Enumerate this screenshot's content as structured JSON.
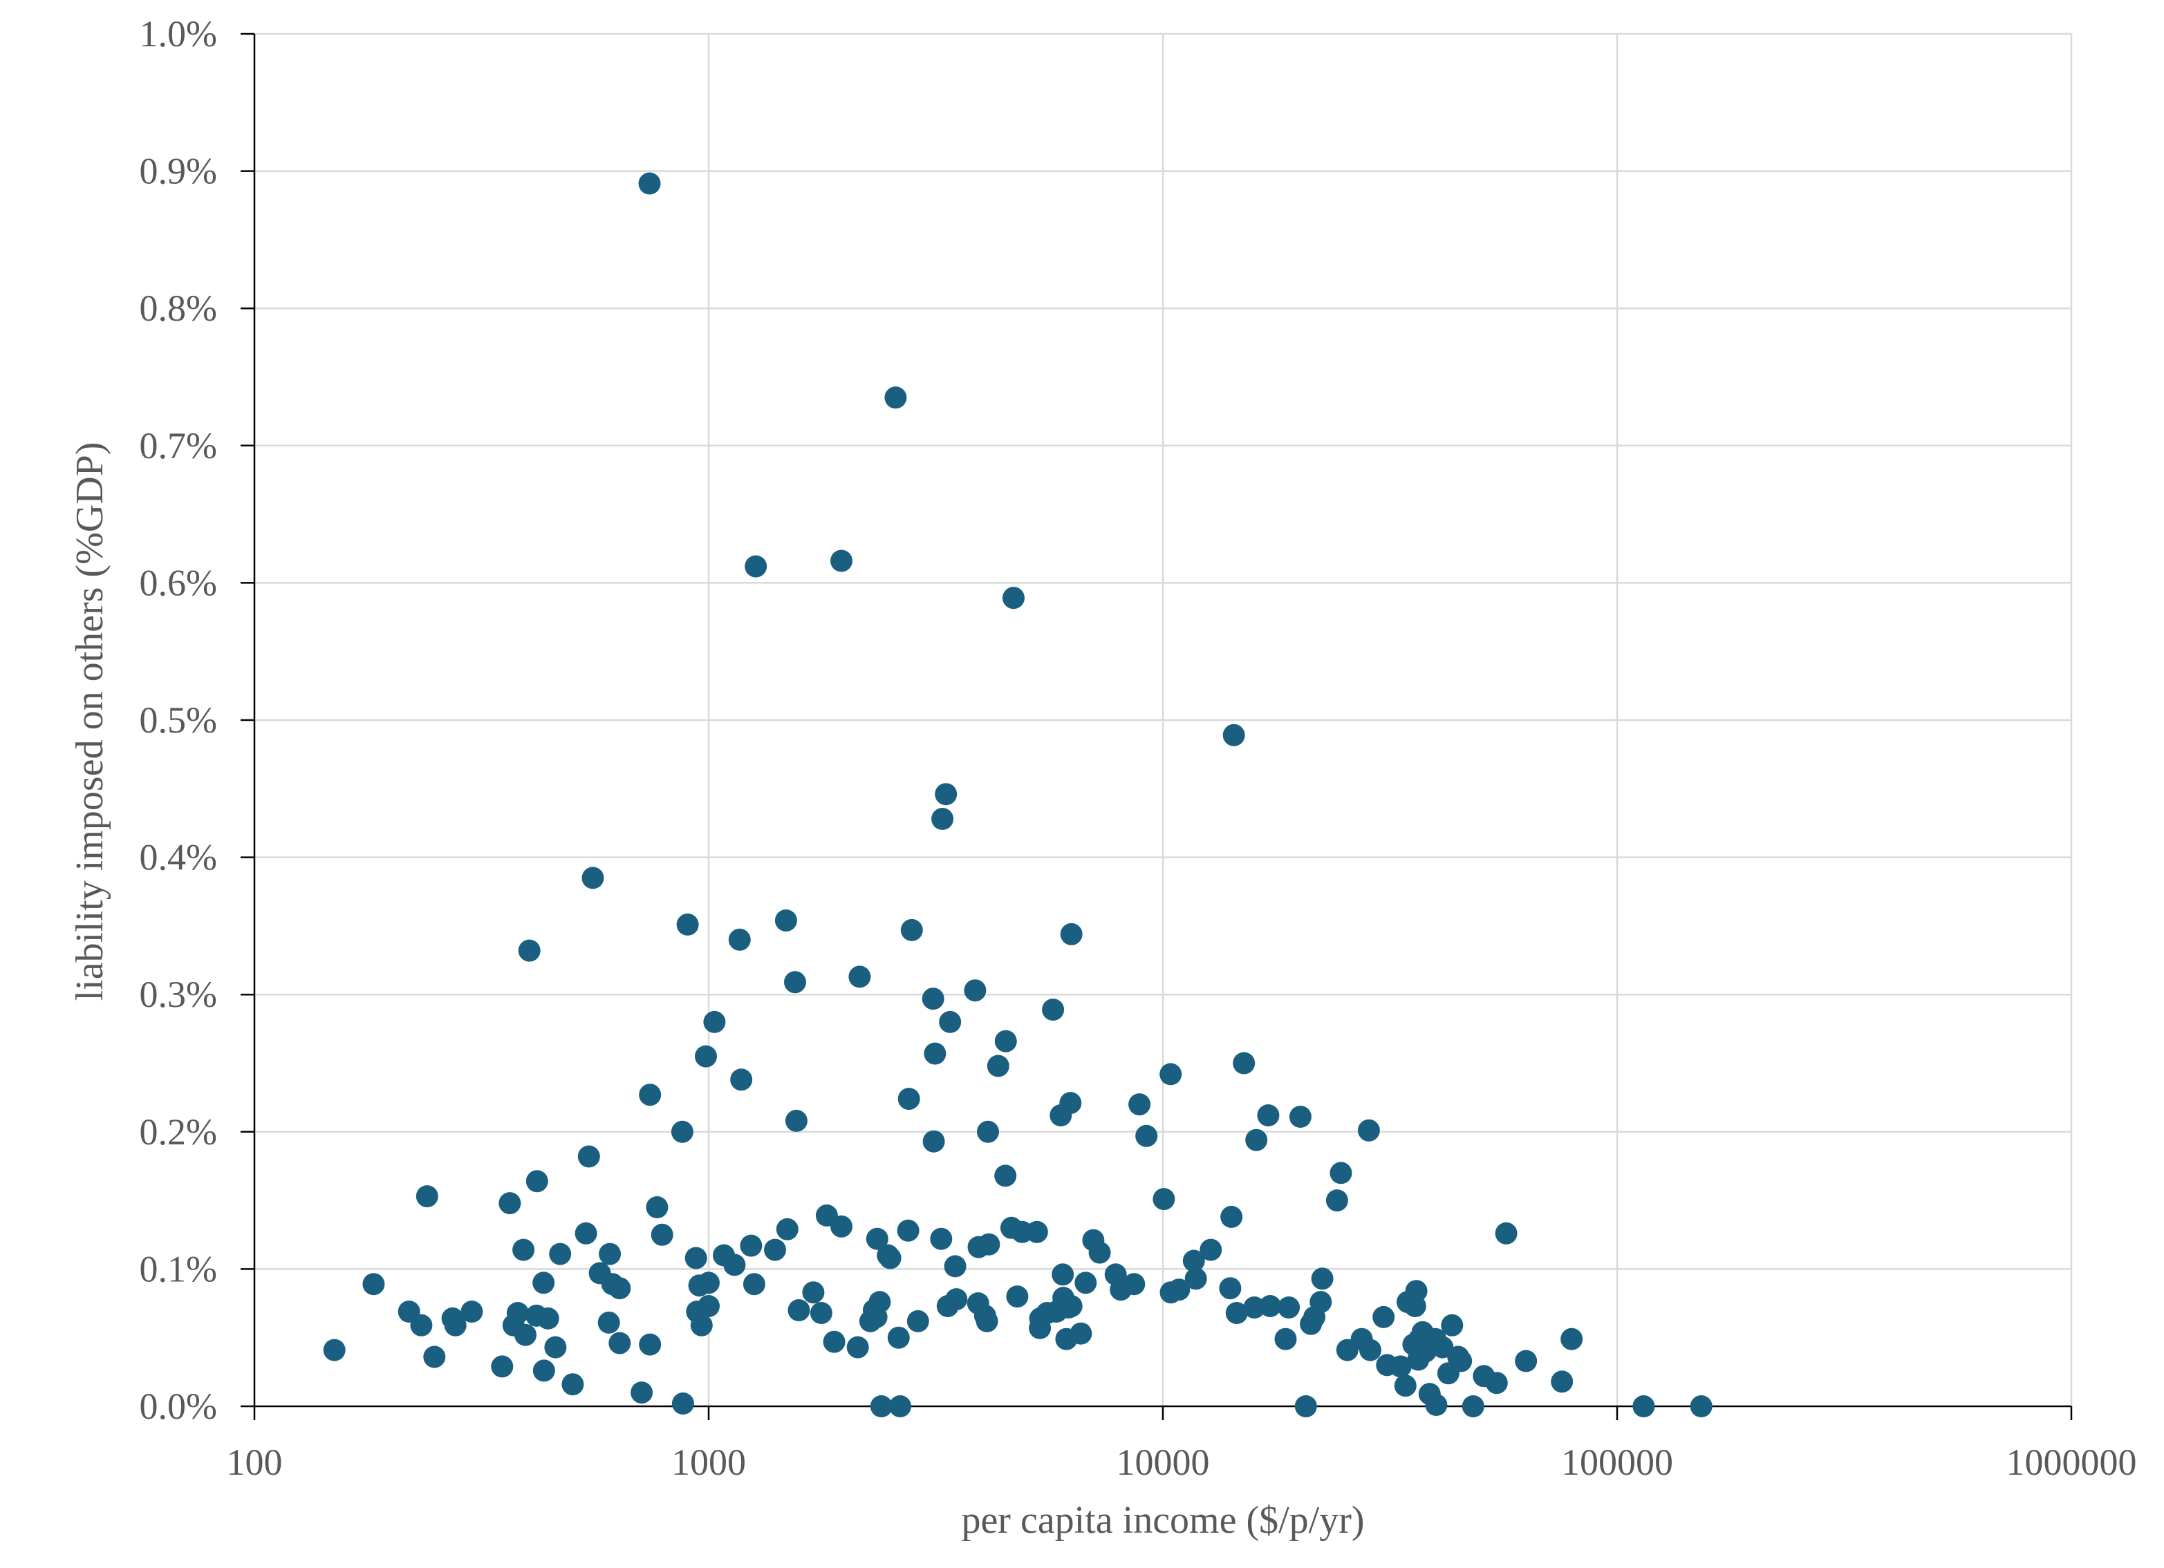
{
  "chart_data": {
    "type": "scatter",
    "title": "",
    "xlabel": "per capita income ($/p/yr)",
    "ylabel": "liability imposed on others (%GDP)",
    "x_scale": "log",
    "xlim": [
      100,
      1000000
    ],
    "ylim": [
      0,
      0.01
    ],
    "x_ticks": [
      100,
      1000,
      10000,
      100000,
      1000000
    ],
    "x_tick_labels": [
      "100",
      "1000",
      "10000",
      "100000",
      "1000000"
    ],
    "y_ticks": [
      0,
      0.001,
      0.002,
      0.003,
      0.004,
      0.005,
      0.006,
      0.007,
      0.008,
      0.009,
      0.01
    ],
    "y_tick_labels": [
      "0.0%",
      "0.1%",
      "0.2%",
      "0.3%",
      "0.4%",
      "0.5%",
      "0.6%",
      "0.7%",
      "0.8%",
      "0.9%",
      "1.0%"
    ],
    "grid": true,
    "legend": "none",
    "marker_color": "#1a5f80",
    "points": [
      [
        741,
        0.00891
      ],
      [
        2580,
        0.00735
      ],
      [
        1270,
        0.00612
      ],
      [
        1960,
        0.00616
      ],
      [
        4690,
        0.00589
      ],
      [
        14330,
        0.00489
      ],
      [
        3330,
        0.00446
      ],
      [
        3270,
        0.00428
      ],
      [
        556,
        0.00385
      ],
      [
        899,
        0.00351
      ],
      [
        403,
        0.00332
      ],
      [
        1170,
        0.0034
      ],
      [
        1480,
        0.00354
      ],
      [
        2800,
        0.00347
      ],
      [
        6290,
        0.00344
      ],
      [
        1550,
        0.00309
      ],
      [
        2150,
        0.00313
      ],
      [
        3120,
        0.00297
      ],
      [
        3860,
        0.00303
      ],
      [
        3400,
        0.0028
      ],
      [
        1030,
        0.0028
      ],
      [
        5730,
        0.00289
      ],
      [
        986,
        0.00255
      ],
      [
        3150,
        0.00257
      ],
      [
        4510,
        0.00266
      ],
      [
        4340,
        0.00248
      ],
      [
        1180,
        0.00238
      ],
      [
        743,
        0.00227
      ],
      [
        10400,
        0.00242
      ],
      [
        15080,
        0.0025
      ],
      [
        2760,
        0.00224
      ],
      [
        6260,
        0.00221
      ],
      [
        5960,
        0.00212
      ],
      [
        8880,
        0.0022
      ],
      [
        1560,
        0.00208
      ],
      [
        17060,
        0.00212
      ],
      [
        20080,
        0.00211
      ],
      [
        875,
        0.002
      ],
      [
        4120,
        0.002
      ],
      [
        3130,
        0.00193
      ],
      [
        9200,
        0.00197
      ],
      [
        16060,
        0.00194
      ],
      [
        28410,
        0.00201
      ],
      [
        545,
        0.00182
      ],
      [
        419,
        0.00164
      ],
      [
        4500,
        0.00168
      ],
      [
        24660,
        0.0017
      ],
      [
        240,
        0.00153
      ],
      [
        365,
        0.00148
      ],
      [
        770,
        0.00145
      ],
      [
        10050,
        0.00151
      ],
      [
        24180,
        0.0015
      ],
      [
        1820,
        0.00139
      ],
      [
        14160,
        0.00138
      ],
      [
        1960,
        0.00131
      ],
      [
        4640,
        0.0013
      ],
      [
        4900,
        0.00127
      ],
      [
        5280,
        0.00127
      ],
      [
        1490,
        0.00129
      ],
      [
        2750,
        0.00128
      ],
      [
        537,
        0.00126
      ],
      [
        790,
        0.00125
      ],
      [
        3250,
        0.00122
      ],
      [
        2350,
        0.00122
      ],
      [
        7030,
        0.00121
      ],
      [
        57000,
        0.00126
      ],
      [
        391,
        0.00114
      ],
      [
        1240,
        0.00117
      ],
      [
        1400,
        0.00114
      ],
      [
        3930,
        0.00116
      ],
      [
        4140,
        0.00118
      ],
      [
        7260,
        0.00112
      ],
      [
        12750,
        0.00114
      ],
      [
        471,
        0.00111
      ],
      [
        606,
        0.00111
      ],
      [
        938,
        0.00108
      ],
      [
        1080,
        0.0011
      ],
      [
        1140,
        0.00103
      ],
      [
        2480,
        0.0011
      ],
      [
        2510,
        0.00108
      ],
      [
        3490,
        0.00102
      ],
      [
        11700,
        0.00106
      ],
      [
        576,
        0.00097
      ],
      [
        6020,
        0.00096
      ],
      [
        7870,
        0.00096
      ],
      [
        11820,
        0.00093
      ],
      [
        22440,
        0.00093
      ],
      [
        183,
        0.00089
      ],
      [
        433,
        0.0009
      ],
      [
        614,
        0.00089
      ],
      [
        637,
        0.00086
      ],
      [
        1260,
        0.00089
      ],
      [
        954,
        0.00088
      ],
      [
        1000,
        0.0009
      ],
      [
        1700,
        0.00083
      ],
      [
        6760,
        0.0009
      ],
      [
        8080,
        0.00085
      ],
      [
        8640,
        0.00089
      ],
      [
        10410,
        0.00083
      ],
      [
        10850,
        0.00085
      ],
      [
        14070,
        0.00086
      ],
      [
        36140,
        0.00084
      ],
      [
        4780,
        0.0008
      ],
      [
        3510,
        0.00078
      ],
      [
        6040,
        0.00079
      ],
      [
        2380,
        0.00076
      ],
      [
        3920,
        0.00075
      ],
      [
        3360,
        0.00073
      ],
      [
        22260,
        0.00076
      ],
      [
        34580,
        0.00076
      ],
      [
        15900,
        0.00072
      ],
      [
        17220,
        0.00073
      ],
      [
        18930,
        0.00072
      ],
      [
        35910,
        0.00073
      ],
      [
        1000,
        0.00073
      ],
      [
        2310,
        0.0007
      ],
      [
        2340,
        0.00065
      ],
      [
        1580,
        0.0007
      ],
      [
        1770,
        0.00068
      ],
      [
        5560,
        0.00068
      ],
      [
        5830,
        0.00069
      ],
      [
        6200,
        0.00072
      ],
      [
        14540,
        0.00068
      ],
      [
        219,
        0.00069
      ],
      [
        301,
        0.00069
      ],
      [
        380,
        0.00068
      ],
      [
        418,
        0.00066
      ],
      [
        443,
        0.00064
      ],
      [
        943,
        0.00069
      ],
      [
        4060,
        0.00066
      ],
      [
        4100,
        0.00062
      ],
      [
        2890,
        0.00062
      ],
      [
        2270,
        0.00062
      ],
      [
        5370,
        0.00064
      ],
      [
        6290,
        0.00073
      ],
      [
        273,
        0.00064
      ],
      [
        277,
        0.00059
      ],
      [
        233,
        0.00059
      ],
      [
        372,
        0.00059
      ],
      [
        603,
        0.00061
      ],
      [
        965,
        0.00059
      ],
      [
        21180,
        0.0006
      ],
      [
        21550,
        0.00065
      ],
      [
        30610,
        0.00065
      ],
      [
        43320,
        0.00059
      ],
      [
        37310,
        0.00054
      ],
      [
        36710,
        0.00049
      ],
      [
        395,
        0.00052
      ],
      [
        5360,
        0.00057
      ],
      [
        6130,
        0.00049
      ],
      [
        6600,
        0.00053
      ],
      [
        2620,
        0.0005
      ],
      [
        1890,
        0.00047
      ],
      [
        2130,
        0.00043
      ],
      [
        637,
        0.00046
      ],
      [
        743,
        0.00045
      ],
      [
        460,
        0.00043
      ],
      [
        18630,
        0.00049
      ],
      [
        27400,
        0.00049
      ],
      [
        79400,
        0.00049
      ],
      [
        25470,
        0.00041
      ],
      [
        28620,
        0.00041
      ],
      [
        35610,
        0.00045
      ],
      [
        39790,
        0.00049
      ],
      [
        41260,
        0.00043
      ],
      [
        37870,
        0.0004
      ],
      [
        150,
        0.00041
      ],
      [
        249,
        0.00036
      ],
      [
        31160,
        0.0003
      ],
      [
        33370,
        0.00029
      ],
      [
        36500,
        0.00034
      ],
      [
        44690,
        0.00036
      ],
      [
        45320,
        0.00033
      ],
      [
        63000,
        0.00033
      ],
      [
        351,
        0.00029
      ],
      [
        434,
        0.00026
      ],
      [
        502,
        0.00016
      ],
      [
        42510,
        0.00024
      ],
      [
        50900,
        0.00022
      ],
      [
        34190,
        0.00015
      ],
      [
        54300,
        0.00017
      ],
      [
        75600,
        0.00018
      ],
      [
        712,
        0.0001
      ],
      [
        38650,
        9e-05
      ],
      [
        878,
        2e-05
      ],
      [
        2400,
        0.0
      ],
      [
        2640,
        0.0
      ],
      [
        20640,
        0.0
      ],
      [
        39980,
        1e-05
      ],
      [
        48200,
        0.0
      ],
      [
        114400,
        0.0
      ],
      [
        153200,
        0.0
      ]
    ]
  }
}
